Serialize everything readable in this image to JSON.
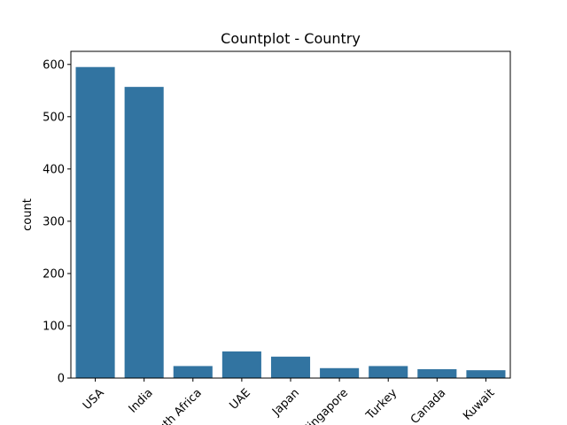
{
  "chart_data": {
    "type": "bar",
    "title": "Countplot - Country",
    "xlabel": "",
    "ylabel": "count",
    "categories": [
      "USA",
      "India",
      "South Africa",
      "UAE",
      "Japan",
      "Singapore",
      "Turkey",
      "Canada",
      "Kuwait"
    ],
    "values": [
      595,
      557,
      23,
      51,
      41,
      19,
      23,
      17,
      15
    ],
    "ylim": [
      0,
      625
    ],
    "yticks": [
      0,
      100,
      200,
      300,
      400,
      500,
      600
    ],
    "ytick_labels": [
      "0",
      "100",
      "200",
      "300",
      "400",
      "500",
      "600"
    ],
    "x_tick_rotation": "45 degrees",
    "grid": false,
    "legend": "none",
    "bar_color": "#3274a1"
  }
}
